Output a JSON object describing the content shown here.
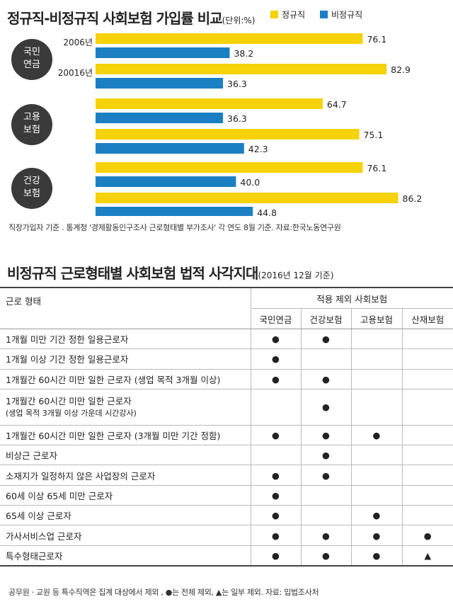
{
  "chart_title": "정규직-비정규직 사회보험 가입률 비교",
  "chart_unit": "(단위:%)",
  "colors": {
    "regular": "#f5d20a",
    "nonregular": "#1b7fc4",
    "badge": "#3a3a3a"
  },
  "chart_data": {
    "type": "bar",
    "orientation": "horizontal",
    "legend": [
      "정규직",
      "비정규직"
    ],
    "legend_position": "top-right",
    "groups": [
      {
        "label": "국민\n연금",
        "rows": [
          {
            "year": "2006년",
            "regular": 76.1,
            "nonregular": 38.2
          },
          {
            "year": "20016년",
            "regular": 82.9,
            "nonregular": 36.3
          }
        ]
      },
      {
        "label": "고용\n보험",
        "rows": [
          {
            "year": "",
            "regular": 64.7,
            "nonregular": 36.3
          },
          {
            "year": "",
            "regular": 75.1,
            "nonregular": 42.3
          }
        ]
      },
      {
        "label": "건강\n보험",
        "rows": [
          {
            "year": "",
            "regular": 76.1,
            "nonregular": 40.0
          },
          {
            "year": "",
            "regular": 86.2,
            "nonregular": 44.8
          }
        ]
      }
    ],
    "value_labels": [
      [
        "76.1",
        "38.2",
        "82.9",
        "36.3"
      ],
      [
        "64.7",
        "36.3",
        "75.1",
        "42.3"
      ],
      [
        "76.1",
        "40.0",
        "86.2",
        "44.8"
      ]
    ],
    "xlim": [
      0,
      100
    ]
  },
  "chart_note": "직장가입자 기준 . 통계청 '경제활동인구조사 근로형태별 부가조사' 각 연도 8월 기준. 자료:한국노동연구원",
  "table_title": "비정규직 근로형태별 사회보험 법적 사각지대",
  "table_subtitle": "(2016년 12월 기준)",
  "table": {
    "col0_header": "근로 형태",
    "group_header": "적용 제외 사회보험",
    "columns": [
      "국민연금",
      "건강보험",
      "고용보험",
      "산재보험"
    ],
    "rows": [
      {
        "label": "1개월 미만 기간 정한 일용근로자",
        "sub": "",
        "marks": [
          "●",
          "●",
          "",
          ""
        ]
      },
      {
        "label": "1개월 이상 기간 정한 일용근로자",
        "sub": "",
        "marks": [
          "●",
          "",
          "",
          ""
        ]
      },
      {
        "label": "1개월간 60시간 미만 일한 근로자 (생업 목적 3개월 이상)",
        "sub": "",
        "marks": [
          "●",
          "●",
          "",
          ""
        ]
      },
      {
        "label": "1개월간 60시간 미만 일한 근로자",
        "sub": "(생업 목적 3개월 이상 가운데 시간강사)",
        "marks": [
          "",
          "●",
          "",
          ""
        ]
      },
      {
        "label": "1개월간 60시간 미만 일한 근로자 (3개월 미만 기간 정함)",
        "sub": "",
        "marks": [
          "●",
          "●",
          "●",
          ""
        ]
      },
      {
        "label": "비상근 근로자",
        "sub": "",
        "marks": [
          "",
          "●",
          "",
          ""
        ]
      },
      {
        "label": "소재지가 일정하지 않은 사업장의 근로자",
        "sub": "",
        "marks": [
          "●",
          "●",
          "",
          ""
        ]
      },
      {
        "label": "60세 이상 65세 미만 근로자",
        "sub": "",
        "marks": [
          "●",
          "",
          "",
          ""
        ]
      },
      {
        "label": "65세 이상 근로자",
        "sub": "",
        "marks": [
          "●",
          "",
          "●",
          ""
        ]
      },
      {
        "label": "가사서비스업 근로자",
        "sub": "",
        "marks": [
          "●",
          "●",
          "●",
          "●"
        ]
      },
      {
        "label": "특수형태근로자",
        "sub": "",
        "marks": [
          "●",
          "●",
          "●",
          "▲"
        ]
      }
    ]
  },
  "table_note": "공무원 · 교원 등 특수직역은 집계 대상에서 제외 , ●는 전체 제외, ▲는 일부 제외. 자료: 입법조사처"
}
